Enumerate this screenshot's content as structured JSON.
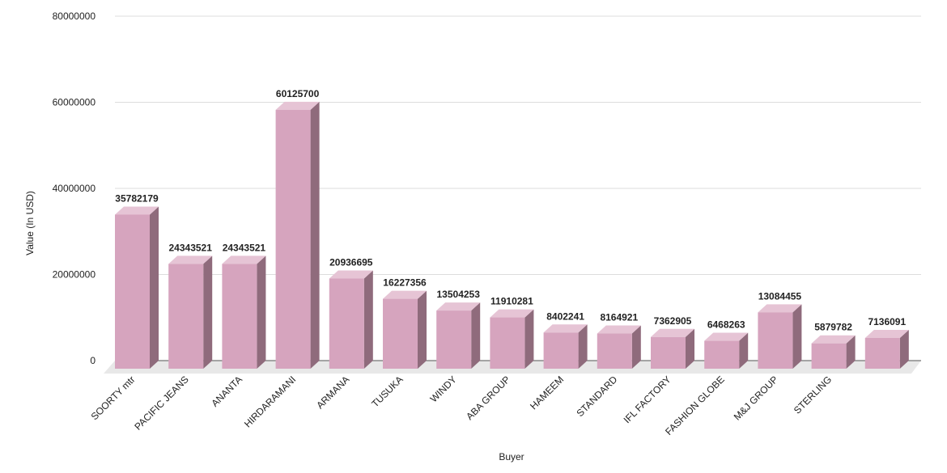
{
  "chart_data": {
    "type": "bar",
    "style": "3d-column",
    "categories": [
      "SOORTY mtr",
      "PACIFIC JEANS",
      "ANANTA",
      "HIRDARAMANI",
      "ARMANA",
      "TUSUKA",
      "WINDY",
      "ABA GROUP",
      "HAMEEM",
      "STANDARD",
      "IFL FACTORY",
      "FASHION GLOBE",
      "M&J GROUP",
      "STERLING",
      ""
    ],
    "values": [
      35782179,
      24343521,
      24343521,
      60125700,
      20936695,
      16227356,
      13504253,
      11910281,
      8402241,
      8164921,
      7362905,
      6468263,
      13084455,
      5879782,
      7136091
    ],
    "data_labels": [
      "35782179",
      "24343521",
      "24343521",
      "60125700",
      "20936695",
      "16227356",
      "13504253",
      "11910281",
      "8402241",
      "8164921",
      "7362905",
      "6468263",
      "13084455",
      "5879782",
      "7136091"
    ],
    "y_ticks": [
      "0",
      "20000000",
      "40000000",
      "60000000",
      "80000000"
    ],
    "xlabel": "Buyer",
    "ylabel": "Value (In USD)",
    "ylim": [
      0,
      80000000
    ],
    "grid": true,
    "legend": "none",
    "colors": {
      "bar_front": "#d6a4be",
      "bar_top": "#e6c4d5",
      "bar_side": "#8f6b7c",
      "floor": "#e8e8e8",
      "gridline": "#dddddd"
    }
  }
}
